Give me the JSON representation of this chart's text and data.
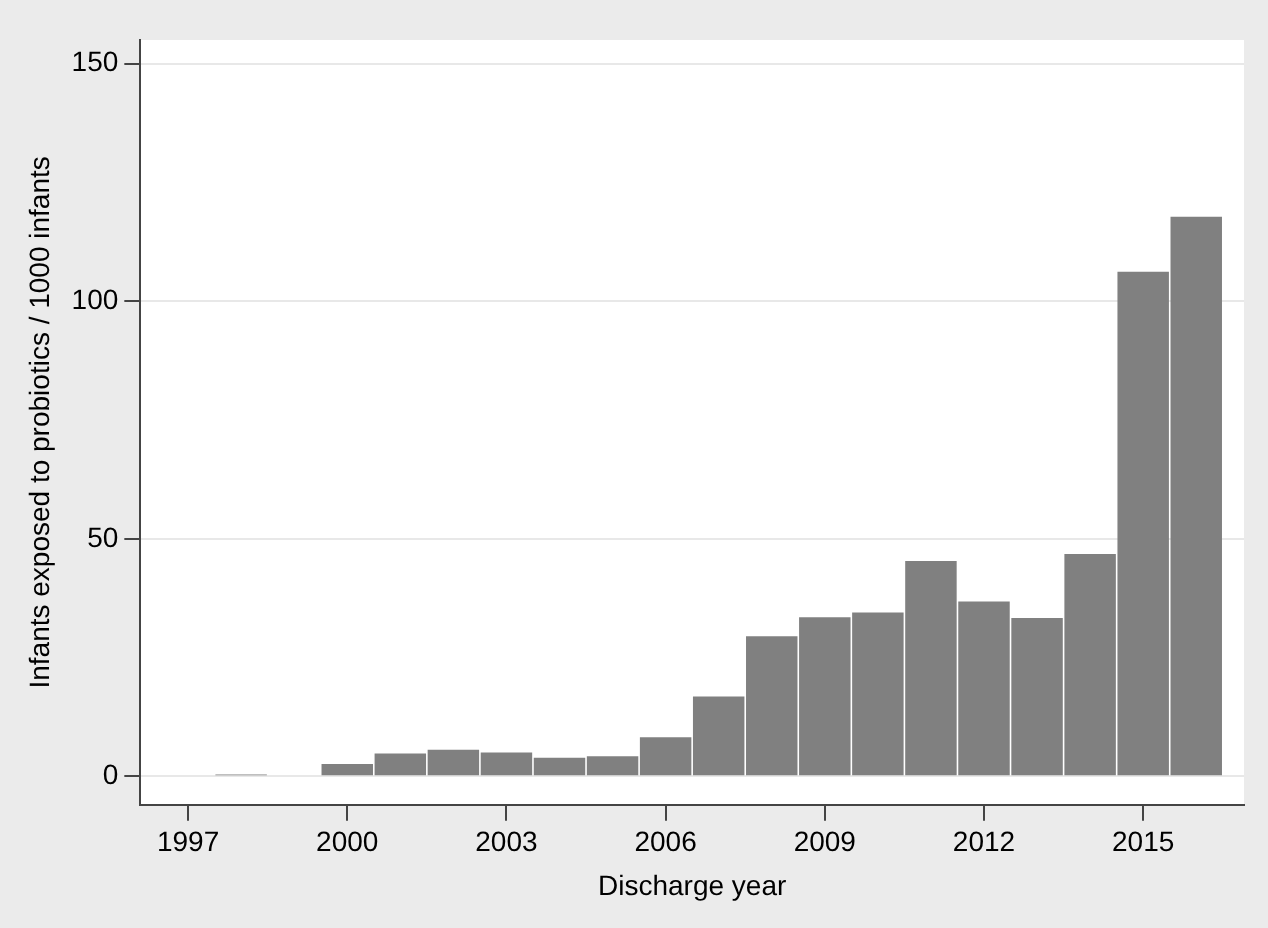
{
  "chart_data": {
    "type": "bar",
    "xlabel": "Discharge year",
    "ylabel": "Infants exposed to probiotics / 1000 infants",
    "x": [
      1997,
      1998,
      1999,
      2000,
      2001,
      2002,
      2003,
      2004,
      2005,
      2006,
      2007,
      2008,
      2009,
      2010,
      2011,
      2012,
      2013,
      2014,
      2015,
      2016
    ],
    "values": [
      0,
      0.4,
      0,
      2.6,
      4.8,
      5.6,
      5.0,
      3.9,
      4.2,
      8.2,
      16.8,
      29.5,
      33.5,
      34.5,
      45.3,
      36.8,
      33.3,
      46.8,
      106.2,
      117.8
    ],
    "color": "#808080",
    "xlim": [
      1996.1,
      2016.9
    ],
    "xticks": [
      1997,
      2000,
      2003,
      2006,
      2009,
      2012,
      2015
    ],
    "ylim": [
      -6,
      155
    ],
    "yticks": [
      0,
      50,
      100,
      150
    ],
    "grid": "y"
  }
}
